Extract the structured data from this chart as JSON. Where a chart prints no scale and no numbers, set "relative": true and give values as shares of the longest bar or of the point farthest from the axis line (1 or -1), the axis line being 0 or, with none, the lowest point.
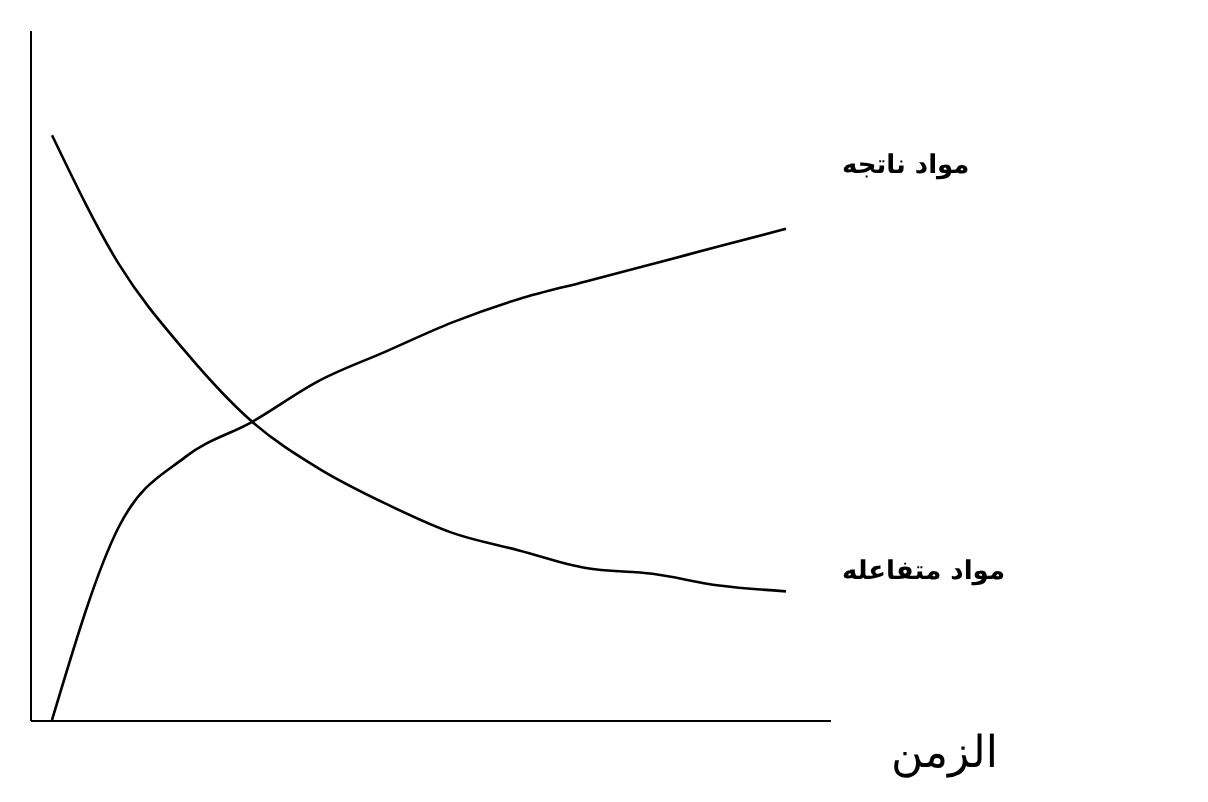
{
  "chart_data": {
    "type": "line",
    "relative": true,
    "xlabel": "الزمن",
    "categories": [
      null,
      null,
      null,
      null,
      null,
      null,
      null,
      null,
      null,
      null,
      null,
      null
    ],
    "tick_labels": false,
    "grid": false,
    "marker": "none",
    "line_style": "solid",
    "series": [
      {
        "name": "مواد ناتجه",
        "color": "#000000",
        "values": [
          0,
          0.33,
          0.45,
          0.51,
          0.58,
          0.63,
          0.68,
          0.72,
          0.75,
          0.78,
          0.81,
          0.84
        ]
      },
      {
        "name": "مواد متفاعله",
        "color": "#000000",
        "values": [
          1,
          0.78,
          0.63,
          0.51,
          0.43,
          0.37,
          0.32,
          0.29,
          0.26,
          0.25,
          0.23,
          0.22
        ]
      }
    ]
  }
}
